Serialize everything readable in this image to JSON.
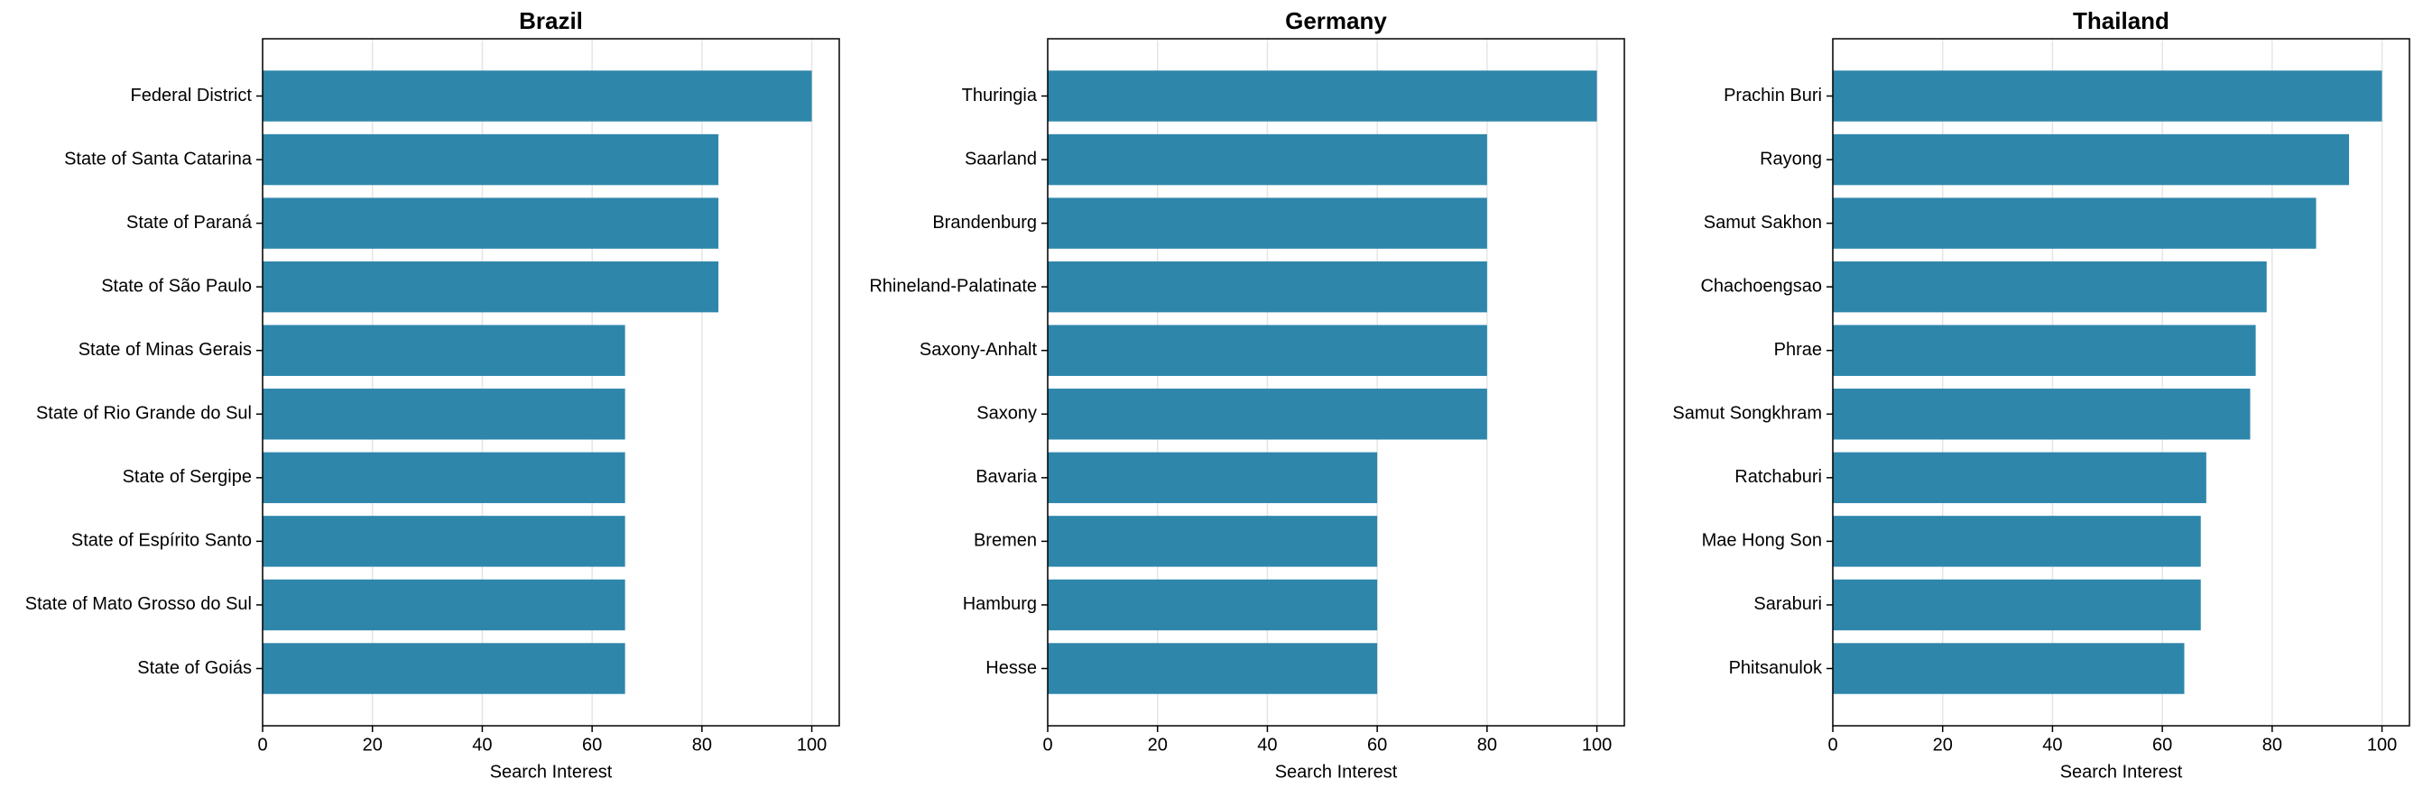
{
  "chart_data": [
    {
      "type": "barh",
      "title": "Brazil",
      "xlabel": "Search Interest",
      "categories": [
        "Federal District",
        "State of Santa Catarina",
        "State of Paraná",
        "State of São Paulo",
        "State of Minas Gerais",
        "State of Rio Grande do Sul",
        "State of Sergipe",
        "State of Espírito Santo",
        "State of Mato Grosso do Sul",
        "State of Goiás"
      ],
      "values": [
        100,
        83,
        83,
        83,
        66,
        66,
        66,
        66,
        66,
        66
      ],
      "color": "#2e86ab",
      "xlim": [
        0,
        105
      ],
      "xticks": [
        0,
        20,
        40,
        60,
        80,
        100
      ],
      "grid": true
    },
    {
      "type": "barh",
      "title": "Germany",
      "xlabel": "Search Interest",
      "categories": [
        "Thuringia",
        "Saarland",
        "Brandenburg",
        "Rhineland-Palatinate",
        "Saxony-Anhalt",
        "Saxony",
        "Bavaria",
        "Bremen",
        "Hamburg",
        "Hesse"
      ],
      "values": [
        100,
        80,
        80,
        80,
        80,
        80,
        60,
        60,
        60,
        60
      ],
      "color": "#2e86ab",
      "xlim": [
        0,
        105
      ],
      "xticks": [
        0,
        20,
        40,
        60,
        80,
        100
      ],
      "grid": true
    },
    {
      "type": "barh",
      "title": "Thailand",
      "xlabel": "Search Interest",
      "categories": [
        "Prachin Buri",
        "Rayong",
        "Samut Sakhon",
        "Chachoengsao",
        "Phrae",
        "Samut Songkhram",
        "Ratchaburi",
        "Mae Hong Son",
        "Saraburi",
        "Phitsanulok"
      ],
      "values": [
        100,
        94,
        88,
        79,
        77,
        76,
        68,
        67,
        67,
        64
      ],
      "color": "#2e86ab",
      "xlim": [
        0,
        105
      ],
      "xticks": [
        0,
        20,
        40,
        60,
        80,
        100
      ],
      "grid": true
    }
  ]
}
